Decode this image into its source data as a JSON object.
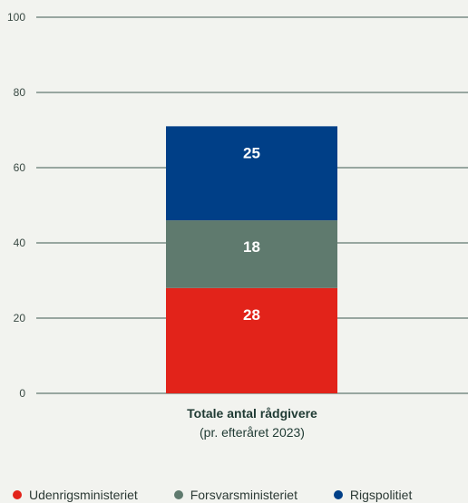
{
  "chart_data": {
    "type": "bar",
    "stacked": true,
    "categories": [
      "Totale antal rådgivere"
    ],
    "category_subtitle": "(pr. efteråret 2023)",
    "series": [
      {
        "name": "Udenrigsministeriet",
        "values": [
          28
        ],
        "color": "#e2231a"
      },
      {
        "name": "Forsvarsministeriet",
        "values": [
          18
        ],
        "color": "#5f7a6e"
      },
      {
        "name": "Rigspolitiet",
        "values": [
          25
        ],
        "color": "#003f87"
      }
    ],
    "yticks": [
      0,
      20,
      40,
      60,
      80,
      100
    ],
    "ylim": [
      0,
      100
    ],
    "grid": true,
    "legend_position": "bottom"
  }
}
